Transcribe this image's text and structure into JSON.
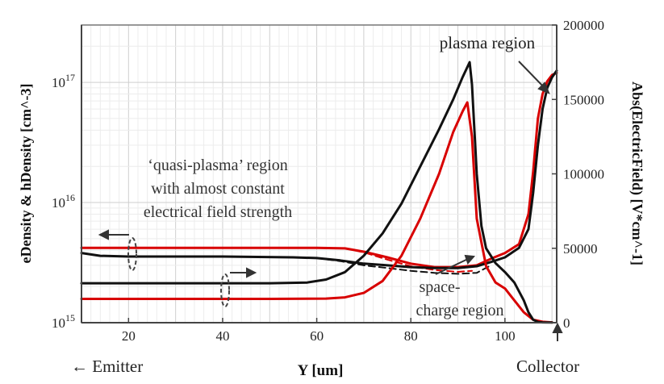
{
  "chart_data": {
    "type": "line",
    "xlabel": "Y [um]",
    "ylabel_left": "eDensity & hDensity [cm^-3]",
    "ylabel_right": "Abs(ElectricField) [V*cm^-1]",
    "xlim": [
      10,
      111
    ],
    "ylim_left": [
      1000000000000000.0,
      3e+17
    ],
    "ylim_right": [
      0,
      200000
    ],
    "left_scale": "log",
    "grid": true,
    "x_ticks": [
      "20",
      "40",
      "60",
      "80",
      "100"
    ],
    "left_ticks": [
      {
        "base": "10",
        "exp": "15",
        "value": 1000000000000000.0
      },
      {
        "base": "10",
        "exp": "16",
        "value": 1e+16
      },
      {
        "base": "10",
        "exp": "17",
        "value": 1e+17
      }
    ],
    "right_ticks": [
      "0",
      "50000",
      "100000",
      "150000",
      "200000"
    ],
    "series": [
      {
        "color": "#d80000",
        "axis": "left",
        "style": "solid",
        "points": [
          [
            10,
            4200000000000000.0
          ],
          [
            30,
            4200000000000000.0
          ],
          [
            60,
            4200000000000000.0
          ],
          [
            66,
            4150000000000000.0
          ],
          [
            70,
            3900000000000000.0
          ],
          [
            75,
            3500000000000000.0
          ],
          [
            80,
            3100000000000000.0
          ],
          [
            85,
            2900000000000000.0
          ],
          [
            90,
            2900000000000000.0
          ],
          [
            94,
            3000000000000000.0
          ],
          [
            97,
            3400000000000000.0
          ],
          [
            100,
            3800000000000000.0
          ],
          [
            103,
            4500000000000000.0
          ],
          [
            105,
            8000000000000000.0
          ],
          [
            106,
            1.8e+16
          ],
          [
            107,
            5e+16
          ],
          [
            108,
            8e+16
          ],
          [
            109,
            1.02e+17
          ],
          [
            110,
            1.15e+17
          ],
          [
            111,
            1.2e+17
          ]
        ]
      },
      {
        "color": "#d80000",
        "axis": "left",
        "style": "dashed",
        "points": [
          [
            66,
            4150000000000000.0
          ],
          [
            70,
            3850000000000000.0
          ],
          [
            75,
            3350000000000000.0
          ],
          [
            80,
            2950000000000000.0
          ],
          [
            85,
            2750000000000000.0
          ],
          [
            90,
            2650000000000000.0
          ],
          [
            93,
            2700000000000000.0
          ]
        ]
      },
      {
        "color": "#111111",
        "axis": "left",
        "style": "solid",
        "points": [
          [
            10,
            3800000000000000.0
          ],
          [
            14,
            3600000000000000.0
          ],
          [
            20,
            3550000000000000.0
          ],
          [
            40,
            3550000000000000.0
          ],
          [
            55,
            3500000000000000.0
          ],
          [
            60,
            3450000000000000.0
          ],
          [
            65,
            3300000000000000.0
          ],
          [
            70,
            3100000000000000.0
          ],
          [
            75,
            3000000000000000.0
          ],
          [
            80,
            2900000000000000.0
          ],
          [
            85,
            2850000000000000.0
          ],
          [
            90,
            2850000000000000.0
          ],
          [
            94,
            2950000000000000.0
          ],
          [
            97,
            3200000000000000.0
          ],
          [
            100,
            3500000000000000.0
          ],
          [
            103,
            4200000000000000.0
          ],
          [
            105,
            6000000000000000.0
          ],
          [
            106,
            1.2e+16
          ],
          [
            107,
            3e+16
          ],
          [
            108,
            6e+16
          ],
          [
            109,
            9e+16
          ],
          [
            110,
            1.1e+17
          ],
          [
            111,
            1.25e+17
          ]
        ]
      },
      {
        "color": "#111111",
        "axis": "left",
        "style": "dashed",
        "points": [
          [
            60,
            3450000000000000.0
          ],
          [
            65,
            3250000000000000.0
          ],
          [
            70,
            3000000000000000.0
          ],
          [
            75,
            2850000000000000.0
          ],
          [
            80,
            2700000000000000.0
          ],
          [
            85,
            2600000000000000.0
          ],
          [
            90,
            2550000000000000.0
          ],
          [
            94,
            2600000000000000.0
          ],
          [
            97,
            3000000000000000.0
          ]
        ]
      },
      {
        "color": "#d80000",
        "axis": "right",
        "style": "solid",
        "points": [
          [
            10,
            16000
          ],
          [
            30,
            16000
          ],
          [
            50,
            16000
          ],
          [
            62,
            16200
          ],
          [
            66,
            17000
          ],
          [
            70,
            20000
          ],
          [
            74,
            28000
          ],
          [
            78,
            45000
          ],
          [
            82,
            70000
          ],
          [
            86,
            100000
          ],
          [
            89,
            128000
          ],
          [
            91,
            142000
          ],
          [
            92,
            148000
          ],
          [
            93,
            125000
          ],
          [
            94,
            70000
          ],
          [
            96,
            38000
          ],
          [
            98,
            27000
          ],
          [
            100,
            23000
          ],
          [
            102,
            15000
          ],
          [
            104,
            7000
          ],
          [
            106,
            2000
          ],
          [
            108,
            600
          ],
          [
            110,
            200
          ]
        ]
      },
      {
        "color": "#111111",
        "axis": "right",
        "style": "solid",
        "points": [
          [
            10,
            26500
          ],
          [
            30,
            26500
          ],
          [
            50,
            26500
          ],
          [
            58,
            27000
          ],
          [
            62,
            29000
          ],
          [
            66,
            34000
          ],
          [
            70,
            45000
          ],
          [
            74,
            60000
          ],
          [
            78,
            80000
          ],
          [
            82,
            105000
          ],
          [
            86,
            130000
          ],
          [
            89,
            150000
          ],
          [
            91,
            165000
          ],
          [
            92.5,
            175000
          ],
          [
            93,
            160000
          ],
          [
            94,
            100000
          ],
          [
            95,
            65000
          ],
          [
            96,
            50000
          ],
          [
            98,
            40000
          ],
          [
            100,
            34000
          ],
          [
            102,
            27000
          ],
          [
            104,
            15000
          ],
          [
            105,
            7000
          ],
          [
            106,
            2000
          ],
          [
            107,
            500
          ],
          [
            108,
            200
          ],
          [
            110,
            100
          ]
        ]
      }
    ],
    "annotations": {
      "quasi_plasma": [
        "‘quasi-plasma’ region",
        "with almost constant",
        "electrical field strength"
      ],
      "plasma": "plasma region",
      "space_charge": [
        "space-",
        "charge region"
      ],
      "emitter": "← Emitter",
      "collector": "Collector"
    }
  }
}
